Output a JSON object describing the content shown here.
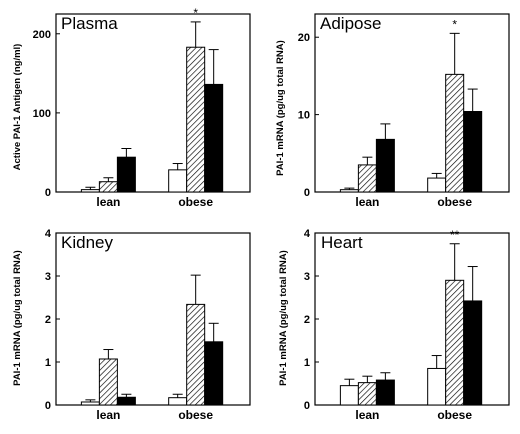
{
  "chart_data": [
    {
      "type": "bar",
      "title": "Plasma",
      "ylabel": "Active PAI-1 Antigen (ng/ml)",
      "categories": [
        "lean",
        "obese"
      ],
      "ylim": [
        0,
        225
      ],
      "yticks": [
        0,
        100,
        200
      ],
      "series": [
        {
          "fill": "open",
          "values": [
            3,
            28
          ],
          "errors": [
            3,
            8
          ]
        },
        {
          "fill": "hatched",
          "values": [
            13,
            183
          ],
          "errors": [
            5,
            32
          ]
        },
        {
          "fill": "solid",
          "values": [
            44,
            136
          ],
          "errors": [
            11,
            44
          ]
        }
      ],
      "annotations": [
        {
          "category": "obese",
          "series": 1,
          "text": "*"
        }
      ]
    },
    {
      "type": "bar",
      "title": "Adipose",
      "ylabel": "PAI-1 mRNA (pg/ug total RNA)",
      "categories": [
        "lean",
        "obese"
      ],
      "ylim": [
        0,
        23
      ],
      "yticks": [
        0,
        10,
        20
      ],
      "series": [
        {
          "fill": "open",
          "values": [
            0.3,
            1.8
          ],
          "errors": [
            0.2,
            0.6
          ]
        },
        {
          "fill": "hatched",
          "values": [
            3.5,
            15.2
          ],
          "errors": [
            1.0,
            5.3
          ]
        },
        {
          "fill": "solid",
          "values": [
            6.8,
            10.4
          ],
          "errors": [
            2.0,
            2.9
          ]
        }
      ],
      "annotations": [
        {
          "category": "obese",
          "series": 1,
          "text": "*"
        }
      ]
    },
    {
      "type": "bar",
      "title": "Kidney",
      "ylabel": "PAI-1 mRNA (pg/ug total RNA)",
      "categories": [
        "lean",
        "obese"
      ],
      "ylim": [
        0,
        4
      ],
      "yticks": [
        0,
        1,
        2,
        3,
        4
      ],
      "series": [
        {
          "fill": "open",
          "values": [
            0.07,
            0.17
          ],
          "errors": [
            0.05,
            0.08
          ]
        },
        {
          "fill": "hatched",
          "values": [
            1.07,
            2.34
          ],
          "errors": [
            0.22,
            0.68
          ]
        },
        {
          "fill": "solid",
          "values": [
            0.18,
            1.47
          ],
          "errors": [
            0.07,
            0.43
          ]
        }
      ],
      "annotations": []
    },
    {
      "type": "bar",
      "title": "Heart",
      "ylabel": "PAI-1 mRNA (pg/ug total RNA)",
      "categories": [
        "lean",
        "obese"
      ],
      "ylim": [
        0,
        4
      ],
      "yticks": [
        0,
        1,
        2,
        3,
        4
      ],
      "series": [
        {
          "fill": "open",
          "values": [
            0.45,
            0.85
          ],
          "errors": [
            0.15,
            0.3
          ]
        },
        {
          "fill": "hatched",
          "values": [
            0.52,
            2.9
          ],
          "errors": [
            0.15,
            0.85
          ]
        },
        {
          "fill": "solid",
          "values": [
            0.58,
            2.42
          ],
          "errors": [
            0.17,
            0.8
          ]
        }
      ],
      "annotations": [
        {
          "category": "obese",
          "series": 1,
          "text": "**"
        }
      ]
    }
  ]
}
